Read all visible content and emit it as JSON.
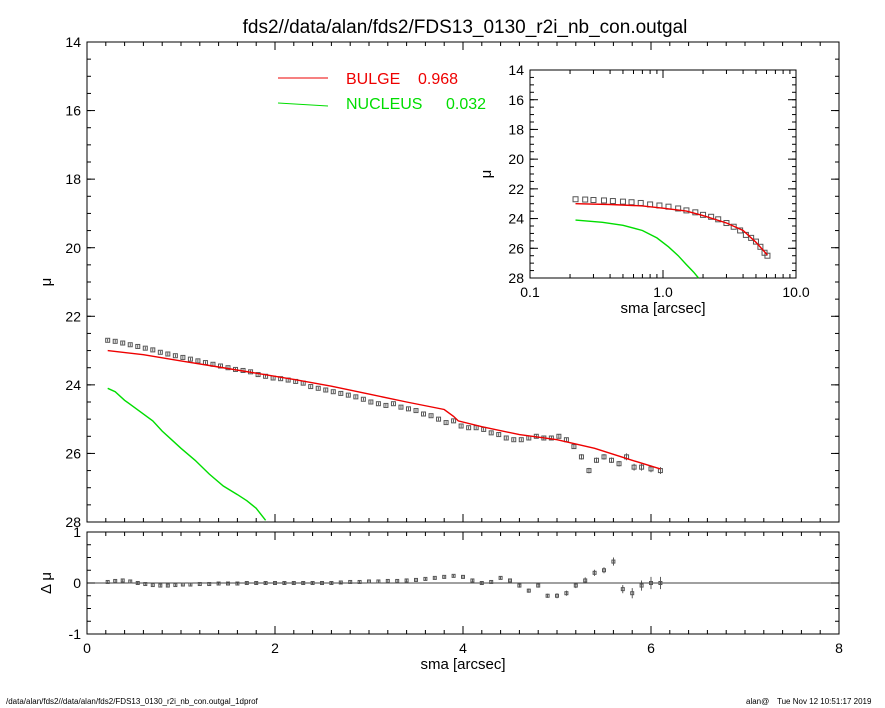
{
  "title": "fds2//data/alan/fds2/FDS13_0130_r2i_nb_con.outgal",
  "footer_left": "/data/alan/fds2//data/alan/fds2/FDS13_0130_r2i_nb_con.outgal_1dprof",
  "footer_user": "alan@",
  "footer_time": "Tue Nov 12 10:51:17 2019",
  "colors": {
    "bulge": "#ee0000",
    "nucleus": "#00dd00",
    "data": "#555555"
  },
  "chart_data": [
    {
      "id": "main_profile",
      "type": "scatter",
      "xlabel": "",
      "ylabel": "μ",
      "xlim": [
        0,
        8
      ],
      "ylim": [
        28,
        14
      ],
      "y_inverted": true,
      "x_ticks": [
        0,
        2,
        4,
        6,
        8
      ],
      "x_tick_labels": [
        "",
        "",
        "",
        "",
        ""
      ],
      "y_ticks": [
        14,
        16,
        18,
        20,
        22,
        24,
        26,
        28
      ],
      "y_tick_labels": [
        "14",
        "16",
        "18",
        "20",
        "22",
        "24",
        "26",
        "28"
      ],
      "legend_position": "top-center",
      "legend": [
        {
          "name": "BULGE",
          "value": "0.968",
          "color": "#ee0000"
        },
        {
          "name": "NUCLEUS",
          "value": "0.032",
          "color": "#00dd00"
        }
      ],
      "series": [
        {
          "name": "data",
          "marker": "square",
          "x": [
            0.22,
            0.3,
            0.38,
            0.46,
            0.54,
            0.62,
            0.7,
            0.78,
            0.86,
            0.94,
            1.02,
            1.1,
            1.18,
            1.26,
            1.34,
            1.42,
            1.5,
            1.58,
            1.66,
            1.74,
            1.82,
            1.9,
            1.98,
            2.06,
            2.14,
            2.22,
            2.3,
            2.38,
            2.46,
            2.54,
            2.62,
            2.7,
            2.78,
            2.86,
            2.94,
            3.02,
            3.1,
            3.18,
            3.26,
            3.34,
            3.42,
            3.5,
            3.58,
            3.66,
            3.74,
            3.82,
            3.9,
            3.98,
            4.06,
            4.14,
            4.22,
            4.3,
            4.38,
            4.46,
            4.54,
            4.62,
            4.7,
            4.78,
            4.86,
            4.94,
            5.02,
            5.1,
            5.18,
            5.26,
            5.34,
            5.42,
            5.5,
            5.58,
            5.66,
            5.74,
            5.82,
            5.9,
            6.0,
            6.1
          ],
          "y": [
            22.7,
            22.73,
            22.78,
            22.83,
            22.88,
            22.93,
            22.98,
            23.05,
            23.1,
            23.15,
            23.2,
            23.25,
            23.3,
            23.35,
            23.4,
            23.45,
            23.5,
            23.55,
            23.58,
            23.62,
            23.7,
            23.75,
            23.8,
            23.82,
            23.86,
            23.9,
            23.95,
            24.05,
            24.1,
            24.15,
            24.2,
            24.25,
            24.3,
            24.35,
            24.42,
            24.5,
            24.55,
            24.6,
            24.55,
            24.65,
            24.7,
            24.75,
            24.85,
            24.9,
            25.0,
            25.1,
            25.05,
            25.2,
            25.25,
            25.25,
            25.3,
            25.4,
            25.45,
            25.55,
            25.6,
            25.6,
            25.55,
            25.5,
            25.55,
            25.55,
            25.5,
            25.6,
            25.8,
            26.1,
            26.5,
            26.2,
            26.1,
            26.2,
            26.3,
            26.1,
            26.4,
            26.4,
            26.45,
            26.5
          ],
          "err": [
            0.04,
            0.04,
            0.04,
            0.04,
            0.04,
            0.04,
            0.04,
            0.04,
            0.04,
            0.04,
            0.04,
            0.04,
            0.04,
            0.04,
            0.04,
            0.04,
            0.04,
            0.04,
            0.04,
            0.04,
            0.04,
            0.04,
            0.04,
            0.04,
            0.04,
            0.04,
            0.04,
            0.04,
            0.04,
            0.04,
            0.04,
            0.04,
            0.04,
            0.04,
            0.04,
            0.04,
            0.04,
            0.04,
            0.04,
            0.04,
            0.04,
            0.04,
            0.04,
            0.04,
            0.04,
            0.04,
            0.04,
            0.04,
            0.04,
            0.04,
            0.04,
            0.04,
            0.04,
            0.04,
            0.04,
            0.04,
            0.06,
            0.06,
            0.06,
            0.06,
            0.06,
            0.06,
            0.06,
            0.08,
            0.08,
            0.08,
            0.08,
            0.08,
            0.08,
            0.1,
            0.1,
            0.1,
            0.1,
            0.1
          ]
        },
        {
          "name": "BULGE",
          "line": true,
          "x": [
            0.22,
            0.6,
            1.0,
            1.4,
            1.8,
            2.2,
            2.6,
            3.0,
            3.4,
            3.8,
            3.9,
            3.95,
            4.2,
            4.6,
            5.0,
            5.4,
            5.8,
            6.1
          ],
          "y": [
            23.0,
            23.12,
            23.3,
            23.48,
            23.66,
            23.84,
            24.04,
            24.27,
            24.5,
            24.72,
            24.92,
            25.05,
            25.22,
            25.45,
            25.6,
            25.85,
            26.2,
            26.45
          ]
        },
        {
          "name": "NUCLEUS",
          "line": true,
          "x": [
            0.22,
            0.3,
            0.4,
            0.55,
            0.7,
            0.8,
            0.9,
            1.0,
            1.15,
            1.3,
            1.45,
            1.6,
            1.7,
            1.8,
            1.9
          ],
          "y": [
            24.1,
            24.2,
            24.45,
            24.75,
            25.05,
            25.35,
            25.6,
            25.85,
            26.2,
            26.6,
            26.95,
            27.2,
            27.38,
            27.6,
            27.95
          ]
        }
      ]
    },
    {
      "id": "residuals",
      "type": "scatter",
      "xlabel": "sma [arcsec]",
      "ylabel": "Δ μ",
      "xlim": [
        0,
        8
      ],
      "ylim": [
        -1,
        1
      ],
      "x_ticks": [
        0,
        2,
        4,
        6,
        8
      ],
      "x_tick_labels": [
        "0",
        "2",
        "4",
        "6",
        "8"
      ],
      "y_ticks": [
        -1,
        0,
        1
      ],
      "y_tick_labels": [
        "-1",
        "0",
        "1"
      ],
      "zero_line": true,
      "series": [
        {
          "name": "residual",
          "x": [
            0.22,
            0.3,
            0.38,
            0.46,
            0.54,
            0.62,
            0.7,
            0.78,
            0.86,
            0.94,
            1.02,
            1.1,
            1.2,
            1.3,
            1.4,
            1.5,
            1.6,
            1.7,
            1.8,
            1.9,
            2.0,
            2.1,
            2.2,
            2.3,
            2.4,
            2.5,
            2.6,
            2.7,
            2.8,
            2.9,
            3.0,
            3.1,
            3.2,
            3.3,
            3.4,
            3.5,
            3.6,
            3.7,
            3.8,
            3.9,
            4.0,
            4.1,
            4.2,
            4.3,
            4.4,
            4.5,
            4.6,
            4.7,
            4.8,
            4.9,
            5.0,
            5.1,
            5.2,
            5.3,
            5.4,
            5.5,
            5.6,
            5.7,
            5.8,
            5.9,
            6.0,
            6.1
          ],
          "y": [
            0.02,
            0.04,
            0.05,
            0.03,
            0.0,
            -0.02,
            -0.04,
            -0.05,
            -0.05,
            -0.04,
            -0.03,
            -0.03,
            -0.02,
            -0.02,
            -0.01,
            -0.01,
            -0.01,
            0.0,
            0.0,
            0.0,
            0.0,
            0.0,
            0.0,
            0.0,
            0.0,
            0.0,
            0.0,
            0.01,
            0.02,
            0.02,
            0.03,
            0.03,
            0.04,
            0.04,
            0.05,
            0.06,
            0.08,
            0.1,
            0.12,
            0.14,
            0.12,
            0.05,
            0.0,
            0.02,
            0.1,
            0.05,
            -0.05,
            -0.15,
            -0.05,
            -0.25,
            -0.25,
            -0.2,
            -0.05,
            0.05,
            0.2,
            0.25,
            0.42,
            -0.12,
            -0.2,
            -0.05,
            0.0,
            0.0
          ],
          "err": [
            0.02,
            0.02,
            0.02,
            0.02,
            0.02,
            0.02,
            0.02,
            0.02,
            0.02,
            0.02,
            0.02,
            0.02,
            0.02,
            0.02,
            0.02,
            0.02,
            0.02,
            0.02,
            0.02,
            0.02,
            0.02,
            0.02,
            0.02,
            0.02,
            0.02,
            0.02,
            0.02,
            0.02,
            0.02,
            0.02,
            0.02,
            0.02,
            0.02,
            0.02,
            0.02,
            0.02,
            0.02,
            0.02,
            0.02,
            0.02,
            0.03,
            0.03,
            0.03,
            0.03,
            0.03,
            0.03,
            0.04,
            0.04,
            0.04,
            0.04,
            0.05,
            0.05,
            0.05,
            0.06,
            0.06,
            0.06,
            0.08,
            0.08,
            0.1,
            0.1,
            0.12,
            0.12
          ]
        }
      ]
    },
    {
      "id": "inset_log",
      "type": "scatter",
      "xlabel": "sma [arcsec]",
      "ylabel": "μ",
      "x_log": true,
      "xlim": [
        0.1,
        10.0
      ],
      "ylim": [
        28,
        14
      ],
      "y_inverted": true,
      "x_ticks": [
        0.1,
        1.0,
        10.0
      ],
      "x_tick_labels": [
        "0.1",
        "1.0",
        "10.0"
      ],
      "y_ticks": [
        14,
        16,
        18,
        20,
        22,
        24,
        26,
        28
      ],
      "y_tick_labels": [
        "14",
        "16",
        "18",
        "20",
        "22",
        "24",
        "26",
        "28"
      ],
      "series": [
        {
          "name": "data",
          "x": [
            0.22,
            0.26,
            0.3,
            0.36,
            0.42,
            0.5,
            0.58,
            0.68,
            0.8,
            0.94,
            1.1,
            1.3,
            1.5,
            1.75,
            2.0,
            2.3,
            2.6,
            3.0,
            3.4,
            3.8,
            4.2,
            4.6,
            5.0,
            5.4,
            5.8,
            6.1
          ],
          "y": [
            22.7,
            22.72,
            22.75,
            22.78,
            22.82,
            22.86,
            22.9,
            22.95,
            23.05,
            23.12,
            23.2,
            23.32,
            23.45,
            23.58,
            23.75,
            23.88,
            24.05,
            24.3,
            24.55,
            24.8,
            25.1,
            25.3,
            25.55,
            25.9,
            26.3,
            26.5
          ]
        },
        {
          "name": "BULGE",
          "line": true,
          "x": [
            0.22,
            0.4,
            0.7,
            1.0,
            1.5,
            2.0,
            3.0,
            4.0,
            5.0,
            6.1
          ],
          "y": [
            23.0,
            23.05,
            23.15,
            23.3,
            23.5,
            23.8,
            24.3,
            24.8,
            25.6,
            26.45
          ]
        },
        {
          "name": "NUCLEUS",
          "line": true,
          "x": [
            0.22,
            0.35,
            0.5,
            0.7,
            0.9,
            1.1,
            1.3,
            1.5,
            1.7,
            1.85
          ],
          "y": [
            24.1,
            24.25,
            24.45,
            24.8,
            25.3,
            25.9,
            26.5,
            27.1,
            27.6,
            28.0
          ]
        }
      ]
    }
  ]
}
